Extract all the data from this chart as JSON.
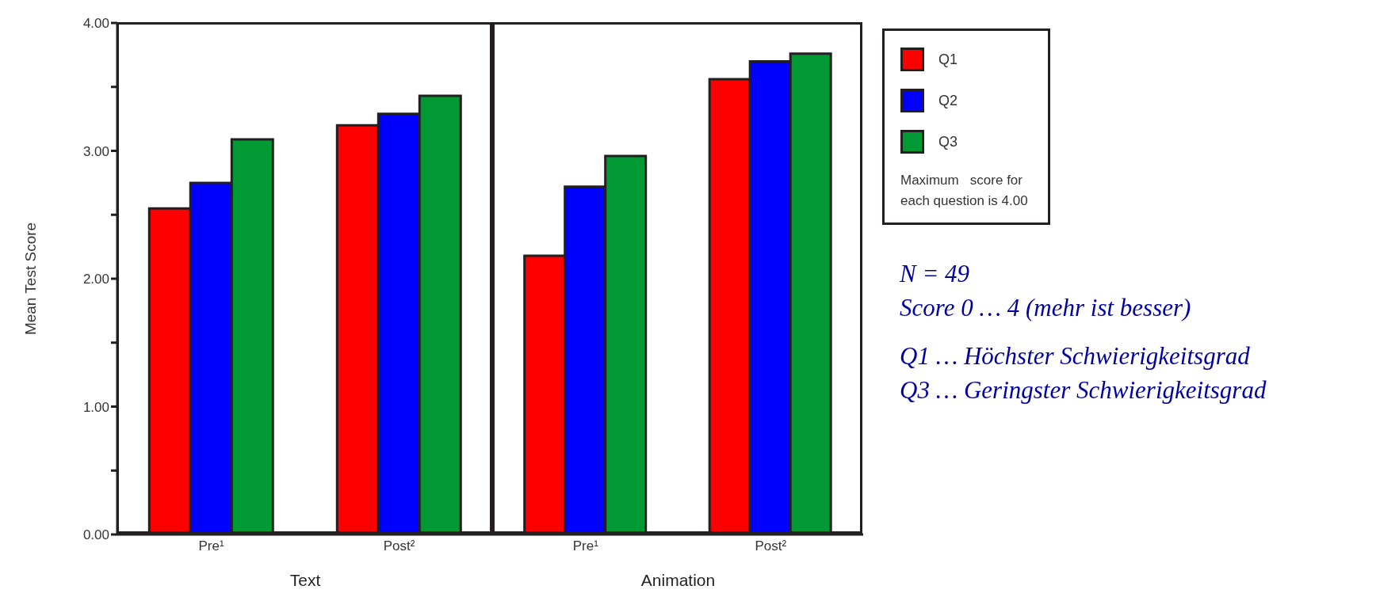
{
  "chart_data": [
    {
      "type": "bar",
      "ylabel": "Mean Test Score",
      "xlabel": "Text",
      "categories": [
        "Pre¹",
        "Post²"
      ],
      "series": [
        {
          "name": "Q1",
          "color": "#ff0000",
          "values": [
            2.55,
            3.2
          ]
        },
        {
          "name": "Q2",
          "color": "#0000ff",
          "values": [
            2.75,
            3.29
          ]
        },
        {
          "name": "Q3",
          "color": "#009933",
          "values": [
            3.09,
            3.43
          ]
        }
      ],
      "ylim": [
        0,
        4
      ],
      "legend": "right",
      "yticks": [
        {
          "value": 0,
          "label": "0.00"
        },
        {
          "value": 0.5,
          "label": null
        },
        {
          "value": 1,
          "label": "1.00"
        },
        {
          "value": 1.5,
          "label": null
        },
        {
          "value": 2,
          "label": "2.00"
        },
        {
          "value": 2.5,
          "label": null
        },
        {
          "value": 3,
          "label": "3.00"
        },
        {
          "value": 3.5,
          "label": null
        },
        {
          "value": 4,
          "label": "4.00"
        }
      ]
    },
    {
      "type": "bar",
      "xlabel": "Animation",
      "categories": [
        "Pre¹",
        "Post²"
      ],
      "series": [
        {
          "color": "#ff0000",
          "values": [
            2.18,
            3.56
          ]
        },
        {
          "color": "#0000ff",
          "values": [
            2.72,
            3.7
          ]
        },
        {
          "color": "#009933",
          "values": [
            2.96,
            3.76
          ]
        }
      ],
      "ylim": [
        0,
        4
      ],
      "tick_labels": "x",
      "annotations": [
        "Maximum   score for each question is 4.00",
        "N = 49",
        "Score 0 … 4 (mehr ist besser)",
        "Q1 … Höchster Schwierigkeitsgrad",
        "Q3 … Geringster Schwierigkeitsgrad"
      ]
    }
  ]
}
